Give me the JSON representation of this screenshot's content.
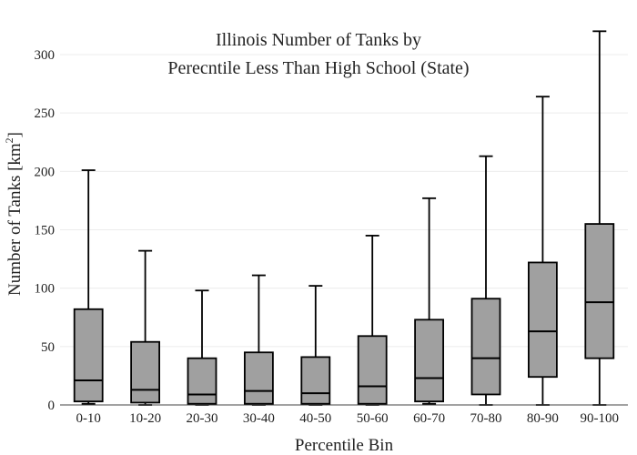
{
  "chart_data": {
    "type": "box",
    "title_lines": [
      "Illinois Number of Tanks by",
      "Perecntile Less Than High School (State)"
    ],
    "xlabel": "Percentile Bin",
    "ylabel_main": "Number of Tanks  [km",
    "ylabel_sup": "2",
    "ylabel_end": "]",
    "ylim": [
      0,
      320
    ],
    "yticks": [
      0,
      50,
      100,
      150,
      200,
      250,
      300
    ],
    "grid": true,
    "legend": "none",
    "box_color": "#a0a0a0",
    "categories": [
      "0-10",
      "10-20",
      "20-30",
      "30-40",
      "40-50",
      "50-60",
      "60-70",
      "70-80",
      "80-90",
      "90-100"
    ],
    "boxes": [
      {
        "min": 1,
        "q1": 3,
        "median": 21,
        "q3": 82,
        "max": 201
      },
      {
        "min": 0,
        "q1": 2,
        "median": 13,
        "q3": 54,
        "max": 132
      },
      {
        "min": 0,
        "q1": 1,
        "median": 9,
        "q3": 40,
        "max": 98
      },
      {
        "min": 0,
        "q1": 1,
        "median": 12,
        "q3": 45,
        "max": 111
      },
      {
        "min": 0,
        "q1": 1,
        "median": 10,
        "q3": 41,
        "max": 102
      },
      {
        "min": 0,
        "q1": 1,
        "median": 16,
        "q3": 59,
        "max": 145
      },
      {
        "min": 1,
        "q1": 3,
        "median": 23,
        "q3": 73,
        "max": 177
      },
      {
        "min": 0,
        "q1": 9,
        "median": 40,
        "q3": 91,
        "max": 213
      },
      {
        "min": 0,
        "q1": 24,
        "median": 63,
        "q3": 122,
        "max": 264
      },
      {
        "min": 0,
        "q1": 40,
        "median": 88,
        "q3": 155,
        "max": 320
      }
    ]
  }
}
